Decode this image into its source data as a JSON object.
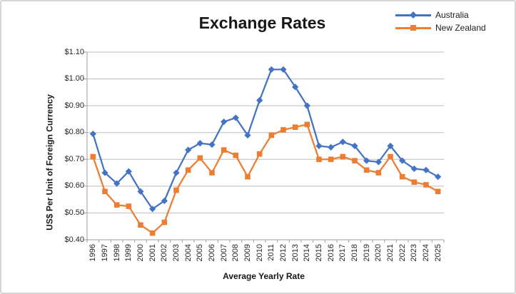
{
  "chart_data": {
    "type": "line",
    "title": "Exchange Rates",
    "xlabel": "Average Yearly Rate",
    "ylabel": "US$ Per Unit of Foreign Currency",
    "categories": [
      "1996",
      "1997",
      "1998",
      "1999",
      "2000",
      "2001",
      "2002",
      "2003",
      "2004",
      "2005",
      "2006",
      "2007",
      "2008",
      "2009",
      "2010",
      "2011",
      "2012",
      "2013",
      "2014",
      "2015",
      "2016",
      "2017",
      "2018",
      "2019",
      "2020",
      "2021",
      "2022",
      "2023",
      "2024",
      "2025"
    ],
    "series": [
      {
        "name": "Australia",
        "color": "#4472C4",
        "marker": "diamond",
        "values": [
          0.795,
          0.65,
          0.61,
          0.655,
          0.58,
          0.515,
          0.545,
          0.65,
          0.735,
          0.76,
          0.755,
          0.84,
          0.855,
          0.79,
          0.92,
          1.035,
          1.035,
          0.97,
          0.9,
          0.75,
          0.745,
          0.765,
          0.75,
          0.695,
          0.69,
          0.75,
          0.695,
          0.665,
          0.66,
          0.635
        ]
      },
      {
        "name": "New Zealand",
        "color": "#ED7D31",
        "marker": "square",
        "values": [
          0.71,
          0.58,
          0.53,
          0.525,
          0.455,
          0.425,
          0.465,
          0.585,
          0.66,
          0.705,
          0.65,
          0.735,
          0.715,
          0.635,
          0.72,
          0.79,
          0.81,
          0.82,
          0.83,
          0.7,
          0.7,
          0.71,
          0.695,
          0.66,
          0.65,
          0.71,
          0.635,
          0.615,
          0.605,
          0.58
        ]
      }
    ],
    "ylim": [
      0.4,
      1.1
    ],
    "y_tick_step": 0.1,
    "y_tick_labels": [
      "$0.40",
      "$0.50",
      "$0.60",
      "$0.70",
      "$0.80",
      "$0.90",
      "$1.00",
      "$1.10"
    ],
    "grid": true,
    "legend_position": "top-right",
    "gridline_color": "#BDBDBD",
    "axis_color": "#9E9E9E"
  }
}
